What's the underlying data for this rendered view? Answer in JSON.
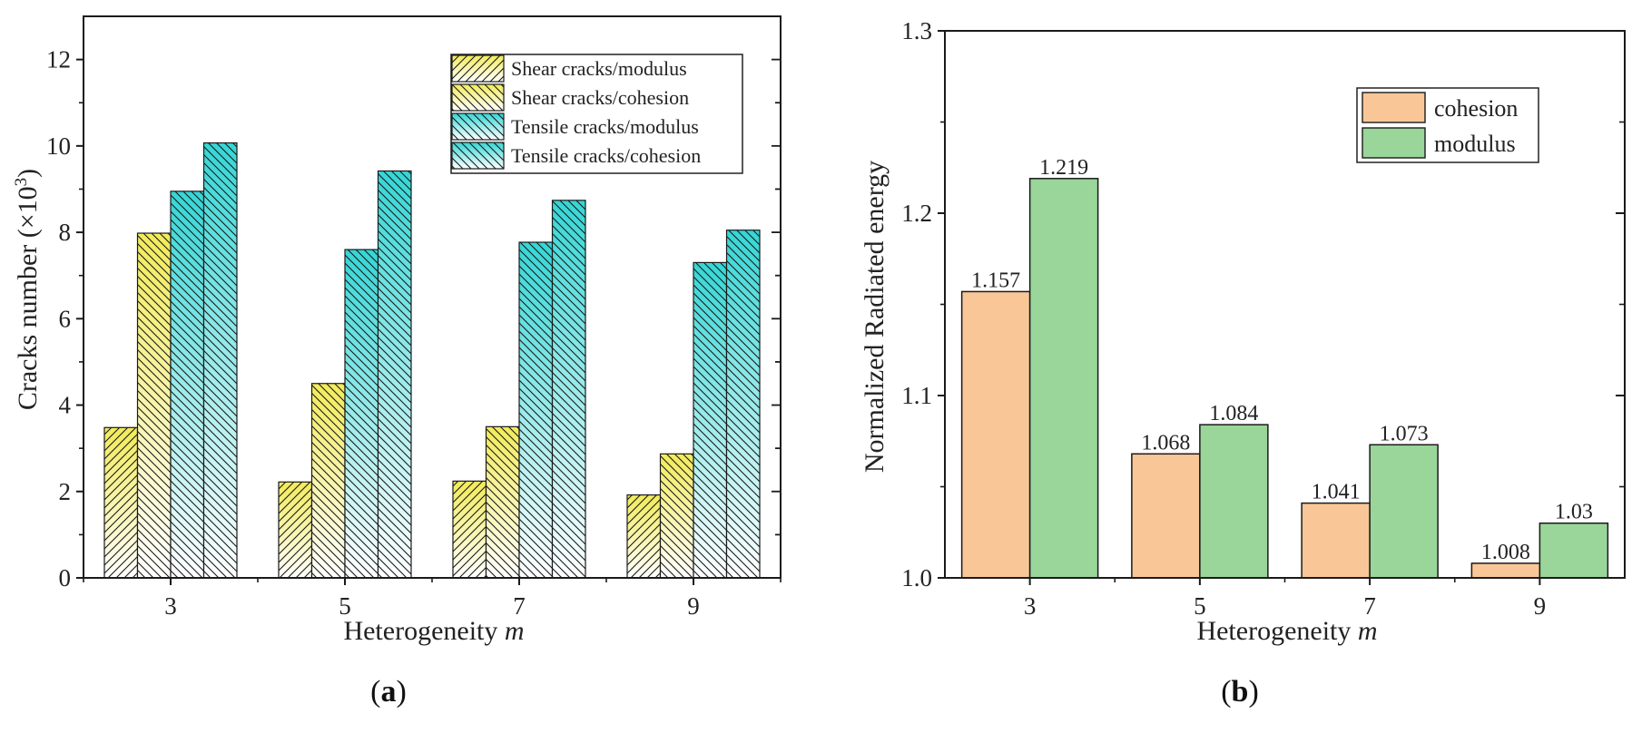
{
  "chart_data": [
    {
      "panel": "(a)",
      "panel_letter": "a",
      "type": "bar",
      "xlabel": "Heterogeneity",
      "xlabel_var": "m",
      "ylabel": "Cracks number (×10",
      "ylabel_exp": "3",
      "ylabel_end": ")",
      "ylim": [
        0,
        13
      ],
      "yticks": [
        0,
        2,
        4,
        6,
        8,
        10,
        12
      ],
      "categories": [
        "3",
        "5",
        "7",
        "9"
      ],
      "legend_position": "top-right",
      "series": [
        {
          "name": "Shear cracks/modulus",
          "values": [
            3.48,
            2.22,
            2.24,
            1.92
          ],
          "color": "#f2eb5a",
          "hatch": "forward"
        },
        {
          "name": "Shear cracks/cohesion",
          "values": [
            7.98,
            4.5,
            3.5,
            2.87
          ],
          "color": "#f2eb5a",
          "hatch": "back"
        },
        {
          "name": "Tensile cracks/modulus",
          "values": [
            8.95,
            7.6,
            7.77,
            7.3
          ],
          "color": "#35d6d6",
          "hatch": "back"
        },
        {
          "name": "Tensile cracks/cohesion",
          "values": [
            10.07,
            9.42,
            8.74,
            8.05
          ],
          "color": "#35d6d6",
          "hatch": "back"
        }
      ]
    },
    {
      "panel": "(b)",
      "panel_letter": "b",
      "type": "bar",
      "xlabel": "Heterogeneity",
      "xlabel_var": "m",
      "ylabel": "Normalized Radiated energy",
      "ylim": [
        1.0,
        1.3
      ],
      "yticks": [
        "1.0",
        "1.1",
        "1.2",
        "1.3"
      ],
      "categories": [
        "3",
        "5",
        "7",
        "9"
      ],
      "legend_position": "top-right",
      "series": [
        {
          "name": "cohesion",
          "values": [
            1.157,
            1.068,
            1.041,
            1.008
          ],
          "labels": [
            "1.157",
            "1.068",
            "1.041",
            "1.008"
          ],
          "color": "#f9c797"
        },
        {
          "name": "modulus",
          "values": [
            1.219,
            1.084,
            1.073,
            1.03
          ],
          "labels": [
            "1.219",
            "1.084",
            "1.073",
            "1.03"
          ],
          "color": "#9ad59a"
        }
      ]
    }
  ]
}
